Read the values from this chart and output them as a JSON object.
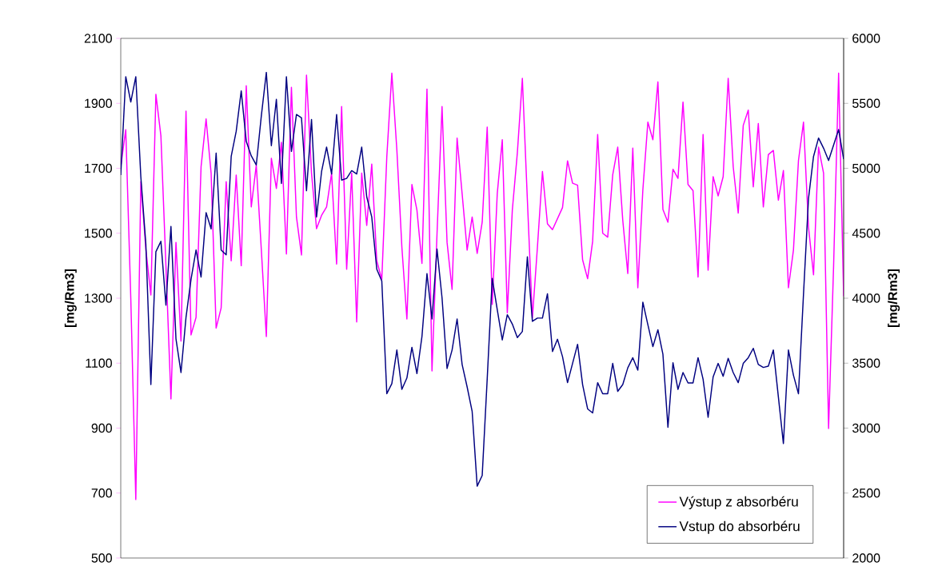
{
  "chart_data": {
    "type": "line",
    "ylabel": "[mg/Rm3]",
    "y2label": "[mg/Rm3]",
    "categories": [
      null,
      null,
      null,
      null,
      null,
      null,
      null,
      null,
      null,
      null,
      null,
      null,
      null,
      null,
      null,
      null,
      null,
      null,
      null,
      null,
      null,
      null,
      null,
      null,
      null,
      null,
      null,
      null,
      null,
      null,
      null,
      null,
      null,
      null,
      null,
      null,
      null,
      null,
      null,
      null,
      null,
      null,
      null,
      null,
      null,
      null,
      null,
      null,
      null,
      null,
      null,
      null,
      null,
      null,
      null,
      null,
      null,
      null,
      null,
      null,
      null,
      null,
      null,
      null,
      null,
      null,
      null,
      null,
      null,
      null,
      null,
      null,
      null,
      null,
      null,
      null,
      null,
      null,
      null,
      null,
      null,
      null,
      null,
      null,
      null,
      null,
      null,
      null,
      null,
      null,
      null,
      null,
      null,
      null,
      null,
      null,
      null,
      null,
      null,
      null,
      null,
      null,
      null,
      null,
      null,
      null,
      null,
      null,
      null,
      null,
      null,
      null,
      null,
      null,
      null,
      null,
      null,
      null,
      null,
      null,
      null,
      null,
      null,
      null,
      null,
      null,
      null,
      null,
      null,
      null,
      null,
      null,
      null,
      null,
      null,
      null,
      null,
      null,
      null,
      null,
      null,
      null,
      null,
      null,
      null
    ],
    "series": [
      {
        "name": "Výstup z absorbéru",
        "color": "#ff00ff",
        "values": [
          1705,
          1819,
          1300,
          680,
          1659,
          1450,
          1310,
          1928,
          1800,
          1400,
          990,
          1472,
          1168,
          1876,
          1187,
          1241,
          1705,
          1852,
          1685,
          1208,
          1270,
          1659,
          1415,
          1679,
          1400,
          1954,
          1581,
          1710,
          1450,
          1182,
          1731,
          1638,
          1780,
          1436,
          1949,
          1550,
          1433,
          1987,
          1685,
          1514,
          1555,
          1581,
          1685,
          1405,
          1890,
          1389,
          1685,
          1227,
          1685,
          1524,
          1713,
          1415,
          1358,
          1736,
          1993,
          1757,
          1457,
          1236,
          1650,
          1571,
          1407,
          1944,
          1076,
          1498,
          1890,
          1472,
          1327,
          1793,
          1622,
          1448,
          1550,
          1438,
          1534,
          1827,
          1281,
          1622,
          1788,
          1255,
          1571,
          1747,
          1977,
          1602,
          1239,
          1457,
          1690,
          1529,
          1511,
          1545,
          1579,
          1723,
          1654,
          1648,
          1418,
          1360,
          1475,
          1804,
          1500,
          1488,
          1680,
          1765,
          1540,
          1376,
          1762,
          1332,
          1633,
          1842,
          1788,
          1966,
          1573,
          1534,
          1697,
          1669,
          1904,
          1650,
          1631,
          1365,
          1804,
          1386,
          1674,
          1615,
          1674,
          1977,
          1705,
          1562,
          1832,
          1879,
          1643,
          1838,
          1581,
          1742,
          1755,
          1602,
          1693,
          1332,
          1448,
          1724,
          1842,
          1519,
          1372,
          1765,
          1685,
          899,
          1400,
          1993,
          1306
        ]
      },
      {
        "name": "Vstup do absorbéru",
        "color": "#000080",
        "axis": "y2",
        "values": [
          4948,
          5705,
          5510,
          5705,
          4935,
          4417,
          3335,
          4358,
          4438,
          3946,
          4552,
          3687,
          3428,
          3853,
          4145,
          4371,
          4163,
          4658,
          4534,
          5117,
          4371,
          4334,
          5091,
          5285,
          5596,
          5207,
          5096,
          5026,
          5402,
          5738,
          5174,
          5531,
          4883,
          5705,
          5130,
          5414,
          5389,
          4827,
          5376,
          4625,
          4974,
          5163,
          4956,
          5414,
          4909,
          4922,
          4982,
          4956,
          5163,
          4780,
          4625,
          4223,
          4132,
          3265,
          3342,
          3601,
          3298,
          3386,
          3622,
          3420,
          3705,
          4189,
          3840,
          4378,
          4003,
          3459,
          3601,
          3840,
          3490,
          3317,
          3128,
          2553,
          2635,
          3381,
          4153,
          3912,
          3679,
          3873,
          3801,
          3697,
          3744,
          4319,
          3822,
          3847,
          3847,
          4034,
          3589,
          3684,
          3550,
          3350,
          3498,
          3645,
          3335,
          3148,
          3117,
          3350,
          3265,
          3265,
          3498,
          3283,
          3335,
          3464,
          3542,
          3446,
          3969,
          3796,
          3627,
          3757,
          3568,
          3006,
          3503,
          3298,
          3428,
          3348,
          3348,
          3542,
          3376,
          3083,
          3394,
          3498,
          3399,
          3537,
          3428,
          3350,
          3498,
          3542,
          3614,
          3490,
          3467,
          3477,
          3601,
          3239,
          2881,
          3601,
          3407,
          3265,
          4029,
          4767,
          5091,
          5233,
          5155,
          5060,
          5179,
          5298,
          5070
        ]
      }
    ],
    "ylim": [
      500,
      2100
    ],
    "yticks": [
      500,
      700,
      900,
      1100,
      1300,
      1500,
      1700,
      1900,
      2100
    ],
    "y2lim": [
      2000,
      6000
    ],
    "y2ticks": [
      2000,
      2500,
      3000,
      3500,
      4000,
      4500,
      5000,
      5500,
      6000
    ],
    "legend": "bottom right",
    "grid": false,
    "marker": "none",
    "line_style": "solid"
  }
}
